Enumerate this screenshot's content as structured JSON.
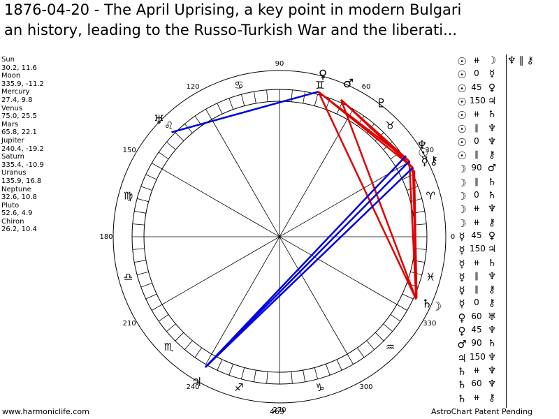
{
  "title": {
    "line1": "1876-04-20 - The April Uprising, a key point in modern Bulgari",
    "line2": "an history, leading to the Russo-Turkish War and the liberati..."
  },
  "planets": [
    {
      "name": "Sun",
      "coords": "30.2, 11.6",
      "lon": 30.2,
      "glyph": "☉"
    },
    {
      "name": "Moon",
      "coords": "335.9, -11.2",
      "lon": 335.9,
      "glyph": "☽"
    },
    {
      "name": "Mercury",
      "coords": "27.4, 9.8",
      "lon": 27.4,
      "glyph": "☿"
    },
    {
      "name": "Venus",
      "coords": "75.0, 25.5",
      "lon": 75.0,
      "glyph": "♀"
    },
    {
      "name": "Mars",
      "coords": "65.8, 22.1",
      "lon": 65.8,
      "glyph": "♂"
    },
    {
      "name": "Jupiter",
      "coords": "240.4, -19.2",
      "lon": 240.4,
      "glyph": "♃"
    },
    {
      "name": "Saturn",
      "coords": "335.4, -10.9",
      "lon": 335.4,
      "glyph": "♄"
    },
    {
      "name": "Uranus",
      "coords": "135.9, 16.8",
      "lon": 135.9,
      "glyph": "♅"
    },
    {
      "name": "Neptune",
      "coords": "32.6, 10.8",
      "lon": 32.6,
      "glyph": "♆"
    },
    {
      "name": "Pluto",
      "coords": "52.6, 4.9",
      "lon": 52.6,
      "glyph": "♇"
    },
    {
      "name": "Chiron",
      "coords": "26.2, 10.4",
      "lon": 26.2,
      "glyph": "⚷"
    }
  ],
  "degree_labels": [
    {
      "deg": 0,
      "text": "0"
    },
    {
      "deg": 30,
      "text": "30"
    },
    {
      "deg": 60,
      "text": "60"
    },
    {
      "deg": 90,
      "text": "90"
    },
    {
      "deg": 120,
      "text": "120"
    },
    {
      "deg": 150,
      "text": "150"
    },
    {
      "deg": 180,
      "text": "180"
    },
    {
      "deg": 210,
      "text": "210"
    },
    {
      "deg": 240,
      "text": "240"
    },
    {
      "deg": 270,
      "text": "270"
    },
    {
      "deg": 300,
      "text": "300"
    },
    {
      "deg": 330,
      "text": "330"
    }
  ],
  "zodiac": [
    {
      "sign": "aries",
      "glyph": "♈",
      "deg": 15
    },
    {
      "sign": "taurus",
      "glyph": "♉",
      "deg": 45
    },
    {
      "sign": "gemini",
      "glyph": "♊",
      "deg": 75
    },
    {
      "sign": "cancer",
      "glyph": "♋",
      "deg": 105
    },
    {
      "sign": "leo",
      "glyph": "♌",
      "deg": 135
    },
    {
      "sign": "virgo",
      "glyph": "♍",
      "deg": 165
    },
    {
      "sign": "libra",
      "glyph": "♎",
      "deg": 195
    },
    {
      "sign": "scorpio",
      "glyph": "♏",
      "deg": 225
    },
    {
      "sign": "sagittarius",
      "glyph": "♐",
      "deg": 255
    },
    {
      "sign": "capricorn",
      "glyph": "♑",
      "deg": 285
    },
    {
      "sign": "aquarius",
      "glyph": "♒",
      "deg": 315
    },
    {
      "sign": "pisces",
      "glyph": "♓",
      "deg": 345
    }
  ],
  "aspect_lines": [
    {
      "from": 75.0,
      "to": 135.9,
      "color": "#0000e0"
    },
    {
      "from": 75.0,
      "to": 30.2,
      "color": "#e00000"
    },
    {
      "from": 75.0,
      "to": 27.4,
      "color": "#e00000"
    },
    {
      "from": 75.0,
      "to": 335.4,
      "color": "#e00000"
    },
    {
      "from": 65.8,
      "to": 30.2,
      "color": "#e00000"
    },
    {
      "from": 65.8,
      "to": 27.4,
      "color": "#e00000"
    },
    {
      "from": 65.8,
      "to": 335.4,
      "color": "#e00000"
    },
    {
      "from": 30.2,
      "to": 335.4,
      "color": "#e00000"
    },
    {
      "from": 27.4,
      "to": 335.9,
      "color": "#e00000"
    },
    {
      "from": 26.2,
      "to": 335.9,
      "color": "#e00000"
    },
    {
      "from": 30.2,
      "to": 240.4,
      "color": "#0000e0"
    },
    {
      "from": 27.4,
      "to": 240.4,
      "color": "#0000e0"
    },
    {
      "from": 32.6,
      "to": 240.4,
      "color": "#0000e0"
    }
  ],
  "aspect_list": [
    {
      "p1": "☉",
      "sym": "⧺",
      "p2": "☽"
    },
    {
      "p1": "☉",
      "sym": "0",
      "p2": "☿"
    },
    {
      "p1": "☉",
      "sym": "45",
      "p2": "♀"
    },
    {
      "p1": "☉",
      "sym": "150",
      "p2": "♃"
    },
    {
      "p1": "☉",
      "sym": "⧺",
      "p2": "♄"
    },
    {
      "p1": "☉",
      "sym": "∥",
      "p2": "♆"
    },
    {
      "p1": "☉",
      "sym": "0",
      "p2": "♆"
    },
    {
      "p1": "☉",
      "sym": "∥",
      "p2": "⚷"
    },
    {
      "p1": "☽",
      "sym": "90",
      "p2": "♂"
    },
    {
      "p1": "☽",
      "sym": "∥",
      "p2": "♄"
    },
    {
      "p1": "☽",
      "sym": "0",
      "p2": "♄"
    },
    {
      "p1": "☽",
      "sym": "⧺",
      "p2": "♆"
    },
    {
      "p1": "☽",
      "sym": "⧺",
      "p2": "⚷"
    },
    {
      "p1": "☿",
      "sym": "45",
      "p2": "♀"
    },
    {
      "p1": "☿",
      "sym": "150",
      "p2": "♃"
    },
    {
      "p1": "☿",
      "sym": "⧺",
      "p2": "♄"
    },
    {
      "p1": "☿",
      "sym": "∥",
      "p2": "♆"
    },
    {
      "p1": "☿",
      "sym": "∥",
      "p2": "⚷"
    },
    {
      "p1": "☿",
      "sym": "0",
      "p2": "⚷"
    },
    {
      "p1": "♀",
      "sym": "60",
      "p2": "♅"
    },
    {
      "p1": "♀",
      "sym": "45",
      "p2": "♆"
    },
    {
      "p1": "♂",
      "sym": "90",
      "p2": "♄"
    },
    {
      "p1": "♃",
      "sym": "150",
      "p2": "♆"
    },
    {
      "p1": "♄",
      "sym": "⧺",
      "p2": "♆"
    },
    {
      "p1": "♄",
      "sym": "60",
      "p2": "♆"
    },
    {
      "p1": "♄",
      "sym": "⧺",
      "p2": "⚷"
    }
  ],
  "top_aspect": {
    "p1": "♆",
    "sym": "∥",
    "p2": "⚷"
  },
  "footer": {
    "left": "www.harmoniclife.com",
    "center": "469",
    "right": "AstroChart Patent Pending"
  }
}
